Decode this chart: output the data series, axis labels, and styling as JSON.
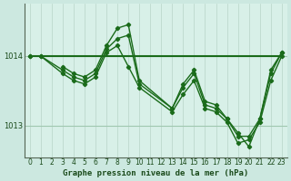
{
  "background_color": "#cce8e0",
  "plot_bg_color": "#d8f0e8",
  "line_color": "#1a6b1a",
  "title": "Graphe pression niveau de la mer (hPa)",
  "xlim": [
    -0.5,
    23.5
  ],
  "ylim": [
    1012.55,
    1014.75
  ],
  "yticks": [
    1013,
    1014
  ],
  "xticks": [
    0,
    1,
    2,
    3,
    4,
    5,
    6,
    7,
    8,
    9,
    10,
    11,
    12,
    13,
    14,
    15,
    16,
    17,
    18,
    19,
    20,
    21,
    22,
    23
  ],
  "lines": [
    {
      "x": [
        0,
        23
      ],
      "y": [
        1014.0,
        1014.0
      ],
      "marker": false,
      "linewidth": 1.5,
      "zorder": 2
    },
    {
      "x": [
        0,
        1,
        3,
        4,
        5,
        6,
        7,
        8,
        9,
        10,
        13,
        14,
        15,
        16,
        17,
        18,
        19,
        20,
        21,
        22,
        23
      ],
      "y": [
        1014.0,
        1014.0,
        1013.75,
        1013.65,
        1013.6,
        1013.7,
        1014.05,
        1014.15,
        1013.85,
        1013.55,
        1013.2,
        1013.45,
        1013.65,
        1013.25,
        1013.2,
        1013.05,
        1012.75,
        1012.8,
        1013.05,
        1013.65,
        1014.0
      ],
      "marker": true,
      "linewidth": 1.0,
      "zorder": 3
    },
    {
      "x": [
        0,
        1,
        3,
        4,
        5,
        6,
        7,
        8,
        9,
        10,
        13,
        14,
        15,
        16,
        17,
        18,
        19,
        20,
        21,
        22,
        23
      ],
      "y": [
        1014.0,
        1014.0,
        1013.8,
        1013.7,
        1013.65,
        1013.75,
        1014.1,
        1014.25,
        1014.3,
        1013.6,
        1013.25,
        1013.55,
        1013.75,
        1013.3,
        1013.25,
        1013.1,
        1012.85,
        1012.85,
        1013.1,
        1013.75,
        1014.05
      ],
      "marker": true,
      "linewidth": 1.0,
      "zorder": 3
    },
    {
      "x": [
        3,
        4,
        5,
        6,
        7,
        8,
        9,
        10,
        13,
        14,
        15,
        16,
        17,
        18,
        19,
        20,
        21,
        22,
        23
      ],
      "y": [
        1013.85,
        1013.75,
        1013.7,
        1013.8,
        1014.15,
        1014.4,
        1014.45,
        1013.65,
        1013.25,
        1013.6,
        1013.8,
        1013.35,
        1013.3,
        1013.1,
        1012.9,
        1012.7,
        1013.1,
        1013.8,
        1014.05
      ],
      "marker": true,
      "linewidth": 1.0,
      "zorder": 3
    }
  ],
  "vgrid_color": "#b8d4c8",
  "hgrid_color": "#a0c8b0",
  "vgrid_lw": 0.5,
  "hgrid_lw": 0.8,
  "tick_fontsize": 5.5,
  "label_fontsize": 6.5,
  "tick_color": "#1a4a1a",
  "spine_color": "#556655"
}
